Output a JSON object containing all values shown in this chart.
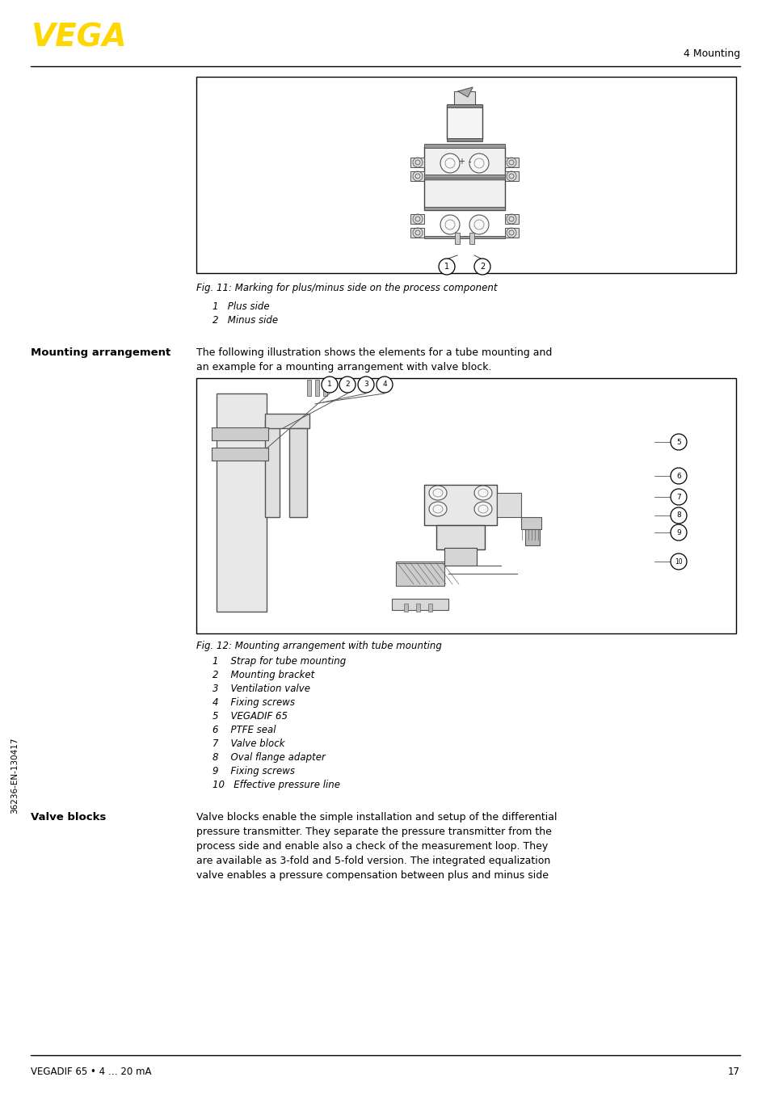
{
  "page_width": 9.54,
  "page_height": 13.54,
  "bg_color": "#ffffff",
  "header_logo_text": "VEGA",
  "header_logo_color": "#FFD700",
  "header_right_text": "4 Mounting",
  "sidebar_text": "36236-EN-130417",
  "fig11_caption": "Fig. 11: Marking for plus/minus side on the process component",
  "fig11_item1": "1   Plus side",
  "fig11_item2": "2   Minus side",
  "fig12_caption": "Fig. 12: Mounting arrangement with tube mounting",
  "fig12_items": [
    "1    Strap for tube mounting",
    "2    Mounting bracket",
    "3    Ventilation valve",
    "4    Fixing screws",
    "5    VEGADIF 65",
    "6    PTFE seal",
    "7    Valve block",
    "8    Oval flange adapter",
    "9    Fixing screws",
    "10   Effective pressure line"
  ],
  "section_title": "Mounting arrangement",
  "section_text_line1": "The following illustration shows the elements for a tube mounting and",
  "section_text_line2": "an example for a mounting arrangement with valve block.",
  "valve_blocks_title": "Valve blocks",
  "valve_blocks_text_line1": "Valve blocks enable the simple installation and setup of the differential",
  "valve_blocks_text_line2": "pressure transmitter. They separate the pressure transmitter from the",
  "valve_blocks_text_line3": "process side and enable also a check of the measurement loop. They",
  "valve_blocks_text_line4": "are available as 3-fold and 5-fold version. The integrated equalization",
  "valve_blocks_text_line5": "valve enables a pressure compensation between plus and minus side",
  "footer_left_text": "VEGADIF 65 • 4 … 20 mA",
  "footer_right_text": "17",
  "text_color": "#000000",
  "line_color": "#000000"
}
